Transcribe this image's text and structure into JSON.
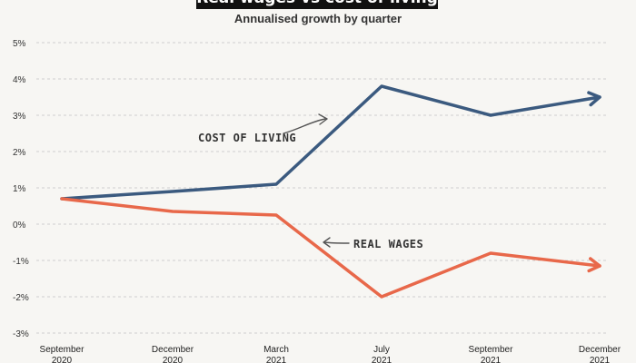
{
  "chart_data": {
    "type": "line",
    "title": "Real wages vs cost of living",
    "subtitle": "Annualised growth by quarter",
    "categories": [
      [
        "September",
        "2020"
      ],
      [
        "December",
        "2020"
      ],
      [
        "March",
        "2021"
      ],
      [
        "July",
        "2021"
      ],
      [
        "September",
        "2021"
      ],
      [
        "December",
        "2021"
      ]
    ],
    "y_ticks": [
      "5%",
      "4%",
      "3%",
      "2%",
      "1%",
      "0%",
      "-1%",
      "-2%",
      "-3%"
    ],
    "ylim": [
      -3,
      5
    ],
    "grid": true,
    "series": [
      {
        "name": "COST OF LIVING",
        "color": "#3b5a7f",
        "values": [
          0.7,
          0.9,
          1.1,
          3.8,
          3.0,
          3.5
        ]
      },
      {
        "name": "REAL WAGES",
        "color": "#e8684a",
        "values": [
          0.7,
          0.35,
          0.25,
          -2.0,
          -0.8,
          -1.15
        ]
      }
    ]
  }
}
